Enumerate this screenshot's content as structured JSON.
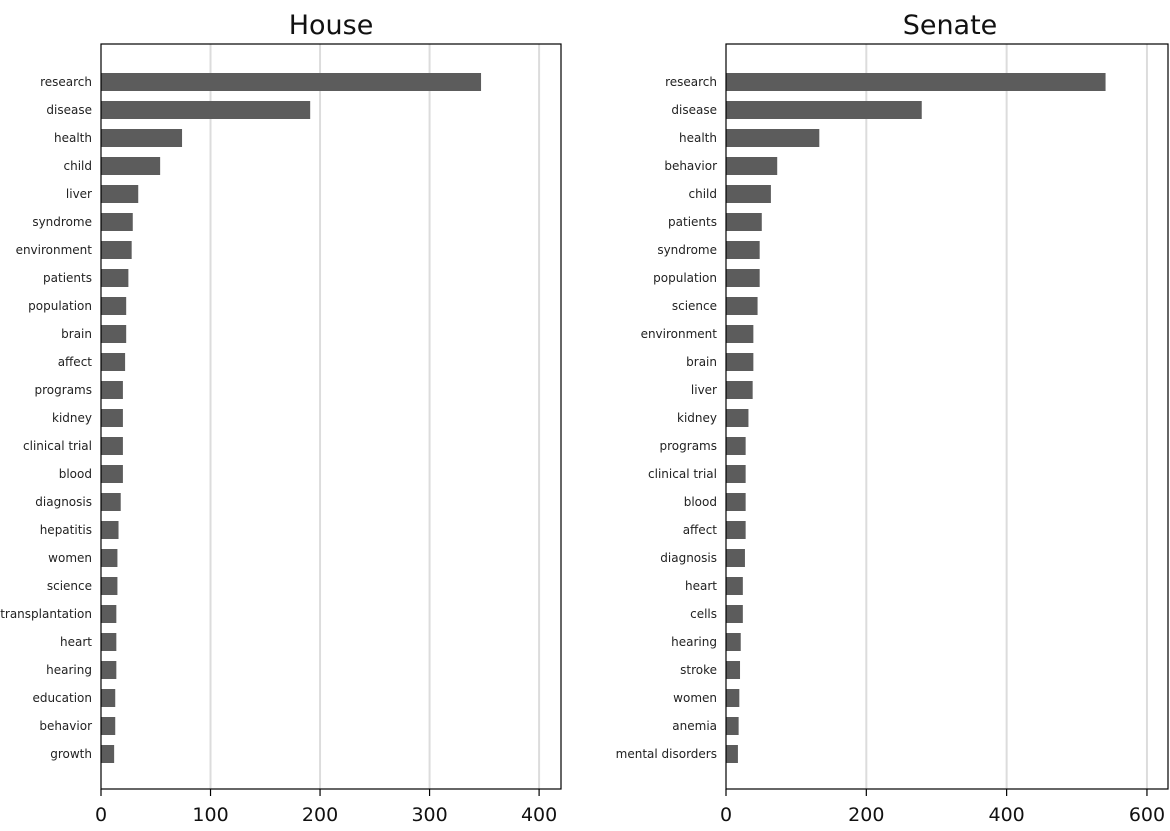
{
  "colors": {
    "bar": "#5c5c5c",
    "grid": "#dcdcdc",
    "frame": "#000000"
  },
  "chart_data": [
    {
      "type": "bar",
      "orientation": "horizontal",
      "title": "House",
      "categories": [
        "research",
        "disease",
        "health",
        "child",
        "liver",
        "syndrome",
        "environment",
        "patients",
        "population",
        "brain",
        "affect",
        "programs",
        "kidney",
        "clinical trial",
        "blood",
        "diagnosis",
        "hepatitis",
        "women",
        "science",
        "transplantation",
        "heart",
        "hearing",
        "education",
        "behavior",
        "growth"
      ],
      "values": [
        347,
        191,
        74,
        54,
        34,
        29,
        28,
        25,
        23,
        23,
        22,
        20,
        20,
        20,
        20,
        18,
        16,
        15,
        15,
        14,
        14,
        14,
        13,
        13,
        12
      ],
      "xlim": [
        0,
        420
      ],
      "xticks": [
        0,
        100,
        200,
        300,
        400
      ],
      "grid": true,
      "xlabel": "",
      "ylabel": ""
    },
    {
      "type": "bar",
      "orientation": "horizontal",
      "title": "Senate",
      "categories": [
        "research",
        "disease",
        "health",
        "behavior",
        "child",
        "patients",
        "syndrome",
        "population",
        "science",
        "environment",
        "brain",
        "liver",
        "kidney",
        "programs",
        "clinical trial",
        "blood",
        "affect",
        "diagnosis",
        "heart",
        "cells",
        "hearing",
        "stroke",
        "women",
        "anemia",
        "mental disorders"
      ],
      "values": [
        541,
        279,
        133,
        73,
        64,
        51,
        48,
        48,
        45,
        39,
        39,
        38,
        32,
        28,
        28,
        28,
        28,
        27,
        24,
        24,
        21,
        20,
        19,
        18,
        17
      ],
      "xlim": [
        0,
        630
      ],
      "xticks": [
        0,
        200,
        400,
        600
      ],
      "grid": true,
      "xlabel": "",
      "ylabel": ""
    }
  ]
}
